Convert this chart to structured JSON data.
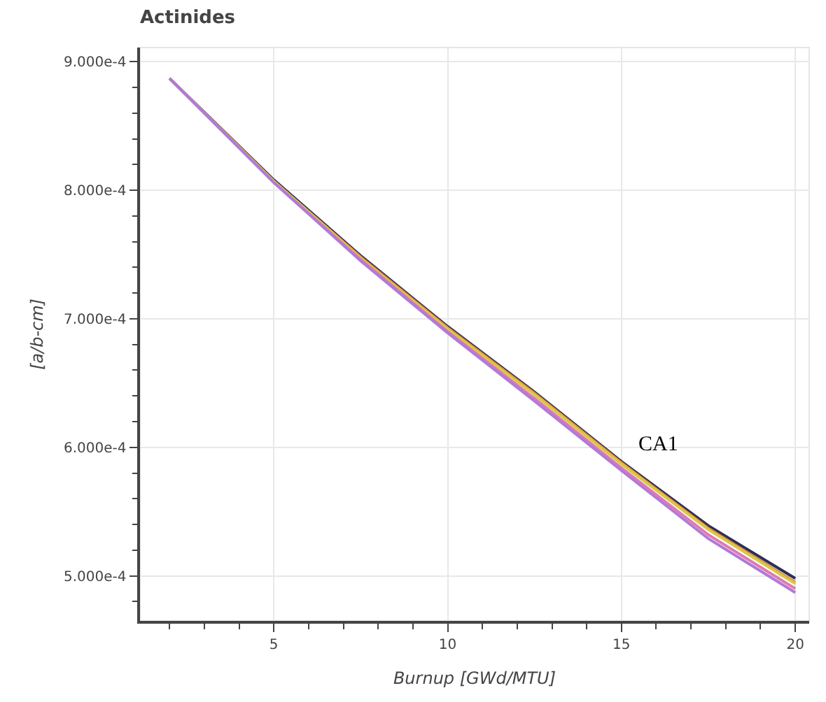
{
  "chart_data": {
    "type": "line",
    "title": "Actinides",
    "xlabel": "Burnup [GWd/MTU]",
    "ylabel": "[a/b-cm]",
    "x": [
      2,
      5,
      7.5,
      10,
      12.5,
      15,
      17.5,
      20
    ],
    "series": [
      {
        "color": "#2b2d5c",
        "values": [
          0.000887,
          0.000808,
          0.000749,
          0.000694,
          0.000643,
          0.000589,
          0.000539,
          0.000498
        ]
      },
      {
        "color": "#e08a2c",
        "values": [
          0.000887,
          0.000807,
          0.000748,
          0.000693,
          0.000642,
          0.000588,
          0.000537,
          0.000495
        ]
      },
      {
        "color": "#d8c84a",
        "values": [
          0.000887,
          0.000807,
          0.000747,
          0.000692,
          0.000641,
          0.000587,
          0.000536,
          0.000494
        ]
      },
      {
        "color": "#e07ab0",
        "values": [
          0.000887,
          0.000806,
          0.000746,
          0.00069,
          0.000638,
          0.000584,
          0.000532,
          0.00049
        ]
      },
      {
        "color": "#b07ad8",
        "values": [
          0.000887,
          0.000806,
          0.000745,
          0.000689,
          0.000636,
          0.000582,
          0.000529,
          0.000487
        ]
      }
    ],
    "xlim": [
      1.15,
      20.4
    ],
    "xticks": [
      5,
      10,
      15,
      20
    ],
    "ylim": [
      0.000465,
      0.000911
    ],
    "yticks": [
      {
        "value": 0.0005,
        "label": "5.000e-4"
      },
      {
        "value": 0.0006,
        "label": "6.000e-4"
      },
      {
        "value": 0.0007,
        "label": "7.000e-4"
      },
      {
        "value": 0.0008,
        "label": "8.000e-4"
      },
      {
        "value": 0.0009,
        "label": "9.000e-4"
      }
    ],
    "annotations": [
      "CA1"
    ],
    "grid": true,
    "marker": "none",
    "line_style": "solid"
  }
}
